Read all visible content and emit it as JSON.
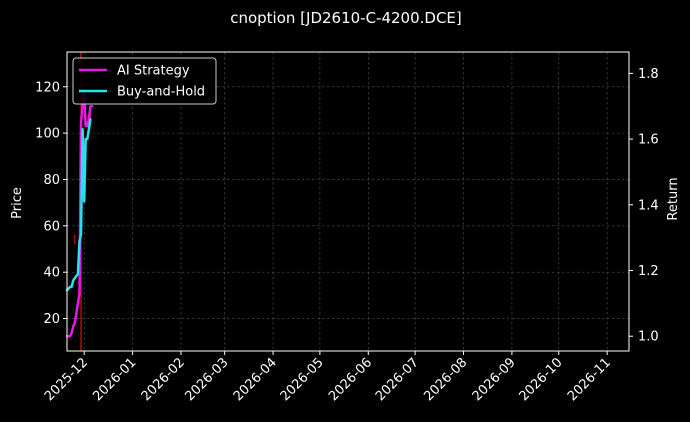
{
  "chart_data": {
    "type": "line",
    "title": "cnoption [JD2610-C-4200.DCE]",
    "xlabel": "",
    "ylabel": "Price",
    "y2label": "Return",
    "x_ticks": [
      "2025-12",
      "2026-01",
      "2026-02",
      "2026-03",
      "2026-04",
      "2026-05",
      "2026-06",
      "2026-07",
      "2026-08",
      "2026-09",
      "2026-10",
      "2026-11"
    ],
    "y_ticks": [
      20,
      40,
      60,
      80,
      100,
      120
    ],
    "y2_ticks": [
      1.0,
      1.2,
      1.4,
      1.6,
      1.8
    ],
    "xlim": [
      "2025-11-20",
      "2026-11-15"
    ],
    "ylim": [
      6,
      135
    ],
    "y2lim": [
      0.955,
      1.865
    ],
    "grid": true,
    "legend_position": "top-left",
    "series": [
      {
        "name": "AI Strategy",
        "axis": "right",
        "color": "#e619e6",
        "x": [
          "2025-11-20",
          "2025-11-22",
          "2025-11-23",
          "2025-11-24",
          "2025-11-25",
          "2025-11-27",
          "2025-11-28",
          "2025-11-29",
          "2025-11-30",
          "2025-12-01",
          "2025-12-02",
          "2025-12-03",
          "2025-12-04",
          "2025-12-05",
          "2025-12-06"
        ],
        "values": [
          1.0,
          1.0,
          1.01,
          1.03,
          1.04,
          1.1,
          1.13,
          1.65,
          1.7,
          1.74,
          1.64,
          1.64,
          1.66,
          1.7,
          1.7
        ]
      },
      {
        "name": "Buy-and-Hold",
        "axis": "right",
        "color": "#22e4ec",
        "x": [
          "2025-11-20",
          "2025-11-22",
          "2025-11-23",
          "2025-11-24",
          "2025-11-27",
          "2025-11-28",
          "2025-11-29",
          "2025-11-30",
          "2025-12-01",
          "2025-12-02",
          "2025-12-03",
          "2025-12-04",
          "2025-12-05"
        ],
        "values": [
          1.14,
          1.15,
          1.15,
          1.17,
          1.19,
          1.29,
          1.31,
          1.63,
          1.41,
          1.6,
          1.6,
          1.63,
          1.66
        ]
      }
    ],
    "vertical_line": {
      "x": "2025-11-29",
      "color": "#dd1111"
    },
    "candles": [
      {
        "x": "2025-11-25",
        "low": 52,
        "high": 56,
        "color": "#dd1111"
      },
      {
        "x": "2025-12-05",
        "low": 106,
        "high": 112,
        "color": "#dd1111"
      }
    ]
  }
}
